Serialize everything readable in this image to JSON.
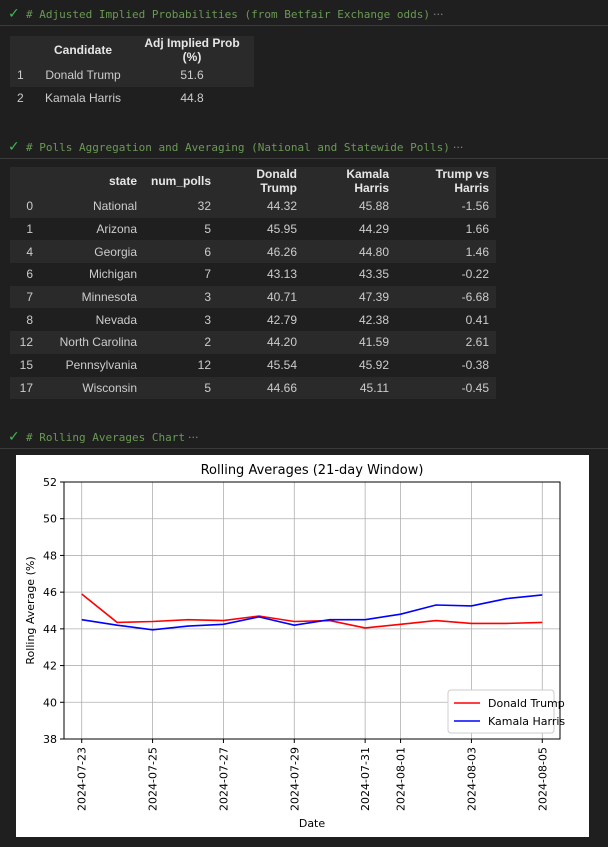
{
  "cells": [
    {
      "title": "# Adjusted Implied Probabilities (from Betfair Exchange odds)",
      "more": "···"
    },
    {
      "title": "# Polls Aggregation and Averaging (National and Statewide Polls)",
      "more": "···"
    },
    {
      "title": "# Rolling Averages Chart",
      "more": "···"
    }
  ],
  "probs": {
    "columns": [
      "",
      "Candidate",
      "Adj Implied Prob (%)"
    ],
    "rows": [
      [
        "1",
        "Donald Trump",
        "51.6"
      ],
      [
        "2",
        "Kamala Harris",
        "44.8"
      ]
    ]
  },
  "polls": {
    "columns": [
      "",
      "state",
      "num_polls",
      "Donald Trump",
      "Kamala Harris",
      "Trump vs Harris"
    ],
    "rows": [
      [
        "0",
        "National",
        "32",
        "44.32",
        "45.88",
        "-1.56"
      ],
      [
        "1",
        "Arizona",
        "5",
        "45.95",
        "44.29",
        "1.66"
      ],
      [
        "4",
        "Georgia",
        "6",
        "46.26",
        "44.80",
        "1.46"
      ],
      [
        "6",
        "Michigan",
        "7",
        "43.13",
        "43.35",
        "-0.22"
      ],
      [
        "7",
        "Minnesota",
        "3",
        "40.71",
        "47.39",
        "-6.68"
      ],
      [
        "8",
        "Nevada",
        "3",
        "42.79",
        "42.38",
        "0.41"
      ],
      [
        "12",
        "North Carolina",
        "2",
        "44.20",
        "41.59",
        "2.61"
      ],
      [
        "15",
        "Pennsylvania",
        "12",
        "45.54",
        "45.92",
        "-0.38"
      ],
      [
        "17",
        "Wisconsin",
        "5",
        "44.66",
        "45.11",
        "-0.45"
      ]
    ]
  },
  "chart_data": {
    "type": "line",
    "title": "Rolling Averages (21-day Window)",
    "xlabel": "Date",
    "ylabel": "Rolling Average (%)",
    "ylim": [
      38,
      52
    ],
    "yticks": [
      "38",
      "40",
      "42",
      "44",
      "46",
      "48",
      "50",
      "52"
    ],
    "xticks": [
      "2024-07-23",
      "2024-07-25",
      "2024-07-27",
      "2024-07-29",
      "2024-07-31",
      "2024-08-01",
      "2024-08-03",
      "2024-08-05"
    ],
    "x": [
      "2024-07-23",
      "2024-07-24",
      "2024-07-25",
      "2024-07-26",
      "2024-07-27",
      "2024-07-28",
      "2024-07-29",
      "2024-07-30",
      "2024-07-31",
      "2024-08-01",
      "2024-08-02",
      "2024-08-03",
      "2024-08-04",
      "2024-08-05"
    ],
    "grid": true,
    "legend": "lower right",
    "series": [
      {
        "name": "Donald Trump",
        "color": "#ff0000",
        "values": [
          45.9,
          44.35,
          44.4,
          44.5,
          44.45,
          44.7,
          44.4,
          44.45,
          44.05,
          44.25,
          44.45,
          44.3,
          44.3,
          44.35
        ]
      },
      {
        "name": "Kamala Harris",
        "color": "#0000ff",
        "values": [
          44.5,
          44.2,
          43.95,
          44.15,
          44.25,
          44.65,
          44.2,
          44.5,
          44.5,
          44.8,
          45.3,
          45.25,
          45.65,
          45.85
        ]
      }
    ]
  }
}
